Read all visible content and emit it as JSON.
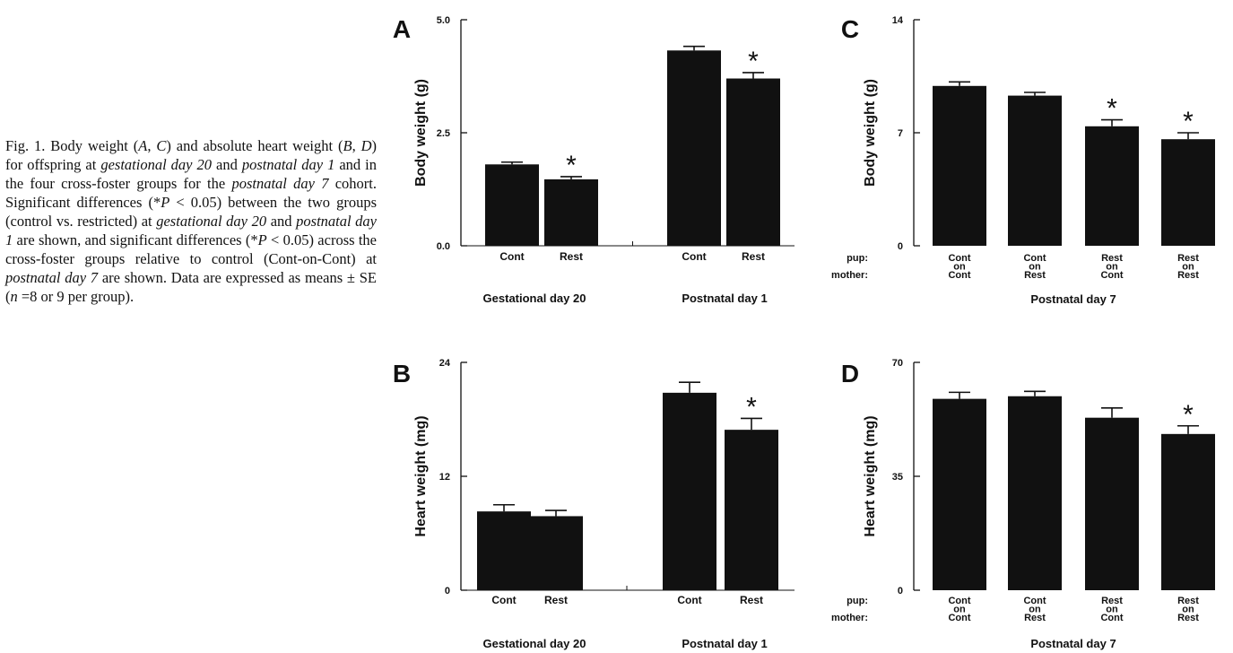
{
  "caption": {
    "prefix": "Fig. 1. ",
    "segments": [
      {
        "t": "Body weight (",
        "i": false
      },
      {
        "t": "A",
        "i": true
      },
      {
        "t": ", ",
        "i": false
      },
      {
        "t": "C",
        "i": true
      },
      {
        "t": ") and absolute heart weight (",
        "i": false
      },
      {
        "t": "B",
        "i": true
      },
      {
        "t": ", ",
        "i": false
      },
      {
        "t": "D",
        "i": true
      },
      {
        "t": ") for offspring at ",
        "i": false
      },
      {
        "t": "gestational day 20",
        "i": true
      },
      {
        "t": " and ",
        "i": false
      },
      {
        "t": "postnatal day 1",
        "i": true
      },
      {
        "t": " and in the four cross-foster groups for the ",
        "i": false
      },
      {
        "t": "postnatal day 7",
        "i": true
      },
      {
        "t": " cohort. Significant differences (*",
        "i": false
      },
      {
        "t": "P",
        "i": true
      },
      {
        "t": " < 0.05) between the two groups (control vs. restricted) at ",
        "i": false
      },
      {
        "t": "gestational day 20",
        "i": true
      },
      {
        "t": " and ",
        "i": false
      },
      {
        "t": "postnatal day 1",
        "i": true
      },
      {
        "t": " are shown, and significant differences (*",
        "i": false
      },
      {
        "t": "P",
        "i": true
      },
      {
        "t": " < 0.05) across the cross-foster groups relative to control (Cont-on-Cont) at ",
        "i": false
      },
      {
        "t": "postnatal day 7",
        "i": true
      },
      {
        "t": " are shown. Data are expressed as means ± SE (",
        "i": false
      },
      {
        "t": "n",
        "i": true
      },
      {
        "t": " =8 or 9 per group).",
        "i": false
      }
    ]
  },
  "chart_data": [
    {
      "panel": "A",
      "type": "bar",
      "ylabel": "Body weight (g)",
      "ylim": [
        0,
        5.0
      ],
      "yticks": [
        "0.0",
        "2.5",
        "5.0"
      ],
      "categories": [
        "Cont",
        "Rest",
        "Cont",
        "Rest"
      ],
      "values": [
        1.8,
        1.47,
        4.32,
        3.7
      ],
      "errors": [
        0.05,
        0.06,
        0.09,
        0.13
      ],
      "significant": [
        false,
        true,
        false,
        true
      ],
      "groups": [
        "Gestational day 20",
        "Postnatal day 1"
      ],
      "sig_marker": "*"
    },
    {
      "panel": "B",
      "type": "bar",
      "ylabel": "Heart weight (mg)",
      "ylim": [
        0,
        24
      ],
      "yticks": [
        "0",
        "12",
        "24"
      ],
      "categories": [
        "Cont",
        "Rest",
        "Cont",
        "Rest"
      ],
      "values": [
        8.3,
        7.8,
        20.8,
        16.9
      ],
      "errors": [
        0.7,
        0.6,
        1.1,
        1.2
      ],
      "significant": [
        false,
        false,
        false,
        true
      ],
      "groups": [
        "Gestational day 20",
        "Postnatal day 1"
      ],
      "sig_marker": "*"
    },
    {
      "panel": "C",
      "type": "bar",
      "ylabel": "Body weight (g)",
      "ylim": [
        0,
        14
      ],
      "yticks": [
        "0",
        "7",
        "14"
      ],
      "row_labels": [
        "pup:",
        "mother:"
      ],
      "categories": [
        [
          "Cont",
          "on",
          "Cont"
        ],
        [
          "Cont",
          "on",
          "Rest"
        ],
        [
          "Rest",
          "on",
          "Cont"
        ],
        [
          "Rest",
          "on",
          "Rest"
        ]
      ],
      "values": [
        9.9,
        9.3,
        7.4,
        6.6
      ],
      "errors": [
        0.25,
        0.2,
        0.4,
        0.4
      ],
      "significant": [
        false,
        false,
        true,
        true
      ],
      "group": "Postnatal day 7",
      "sig_marker": "*"
    },
    {
      "panel": "D",
      "type": "bar",
      "ylabel": "Heart weight (mg)",
      "ylim": [
        0,
        70
      ],
      "yticks": [
        "0",
        "35",
        "70"
      ],
      "row_labels": [
        "pup:",
        "mother:"
      ],
      "categories": [
        [
          "Cont",
          "on",
          "Cont"
        ],
        [
          "Cont",
          "on",
          "Rest"
        ],
        [
          "Rest",
          "on",
          "Cont"
        ],
        [
          "Rest",
          "on",
          "Rest"
        ]
      ],
      "values": [
        58.8,
        59.6,
        53.0,
        48.0
      ],
      "errors": [
        2.0,
        1.5,
        3.0,
        2.5
      ],
      "significant": [
        false,
        false,
        false,
        true
      ],
      "group": "Postnatal day 7",
      "sig_marker": "*"
    }
  ]
}
